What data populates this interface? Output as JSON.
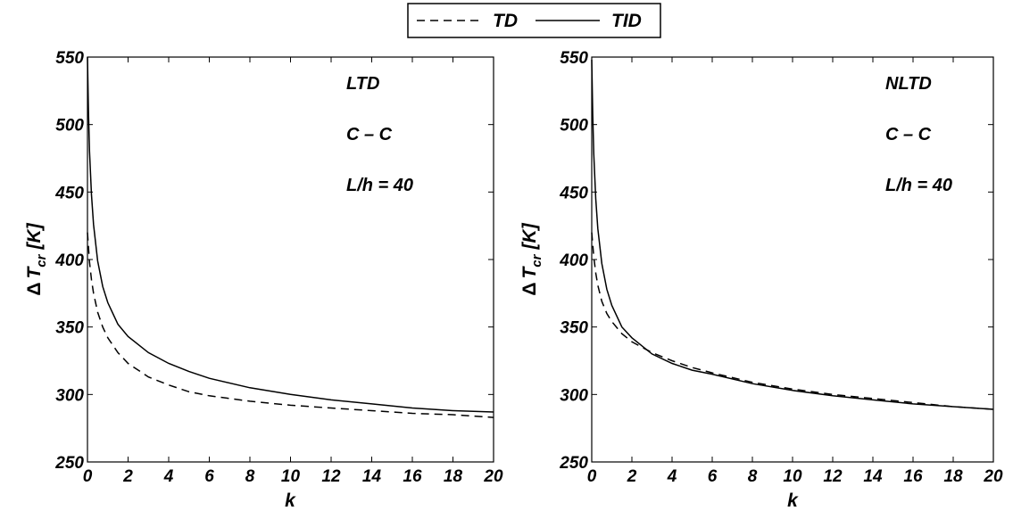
{
  "legend": {
    "items": [
      {
        "label": "TD",
        "dash": "dashed"
      },
      {
        "label": "TID",
        "dash": "solid"
      }
    ]
  },
  "chart_data": [
    {
      "type": "line",
      "xlabel": "k",
      "ylabel": "ΔT_cr [K]",
      "xlim": [
        0,
        20
      ],
      "ylim": [
        250,
        550
      ],
      "xticks": [
        "0",
        "2",
        "4",
        "6",
        "8",
        "10",
        "12",
        "14",
        "16",
        "18",
        "20"
      ],
      "yticks": [
        "250",
        "300",
        "350",
        "400",
        "450",
        "500",
        "550"
      ],
      "annotations": [
        "LTD",
        "C – C",
        "L/h = 40"
      ],
      "grid": false,
      "series": [
        {
          "name": "TD",
          "style": "dashed",
          "x": [
            0,
            0.1,
            0.2,
            0.3,
            0.5,
            0.75,
            1,
            1.5,
            2,
            3,
            4,
            5,
            6,
            8,
            10,
            12,
            14,
            16,
            18,
            20
          ],
          "y": [
            420,
            398,
            385,
            375,
            361,
            350,
            342,
            331,
            323,
            313,
            307,
            302,
            299,
            295,
            292,
            290,
            288,
            286,
            285,
            283
          ]
        },
        {
          "name": "TID",
          "style": "solid",
          "x": [
            0,
            0.05,
            0.1,
            0.2,
            0.3,
            0.5,
            0.75,
            1,
            1.5,
            2,
            3,
            4,
            5,
            6,
            8,
            10,
            12,
            14,
            16,
            18,
            20
          ],
          "y": [
            550,
            510,
            480,
            448,
            426,
            399,
            380,
            368,
            352,
            343,
            331,
            323,
            317,
            312,
            305,
            300,
            296,
            293,
            290,
            288,
            287
          ]
        }
      ]
    },
    {
      "type": "line",
      "xlabel": "k",
      "ylabel": "ΔT_cr [K]",
      "xlim": [
        0,
        20
      ],
      "ylim": [
        250,
        550
      ],
      "xticks": [
        "0",
        "2",
        "4",
        "6",
        "8",
        "10",
        "12",
        "14",
        "16",
        "18",
        "20"
      ],
      "yticks": [
        "250",
        "300",
        "350",
        "400",
        "450",
        "500",
        "550"
      ],
      "annotations": [
        "NLTD",
        "C – C",
        "L/h = 40"
      ],
      "grid": false,
      "series": [
        {
          "name": "TD",
          "style": "dashed",
          "x": [
            0,
            0.1,
            0.2,
            0.3,
            0.5,
            0.75,
            1,
            1.5,
            2,
            3,
            4,
            5,
            6,
            8,
            10,
            12,
            14,
            16,
            18,
            20
          ],
          "y": [
            420,
            402,
            390,
            381,
            369,
            360,
            354,
            345,
            339,
            331,
            325,
            320,
            316,
            309,
            304,
            300,
            297,
            294,
            291,
            289
          ]
        },
        {
          "name": "TID",
          "style": "solid",
          "x": [
            0,
            0.05,
            0.1,
            0.2,
            0.3,
            0.5,
            0.75,
            1,
            1.5,
            2,
            3,
            4,
            5,
            6,
            8,
            10,
            12,
            14,
            16,
            18,
            20
          ],
          "y": [
            548,
            508,
            478,
            445,
            423,
            397,
            378,
            366,
            350,
            342,
            330,
            323,
            318,
            315,
            308,
            303,
            299,
            296,
            293,
            291,
            289
          ]
        }
      ]
    }
  ]
}
